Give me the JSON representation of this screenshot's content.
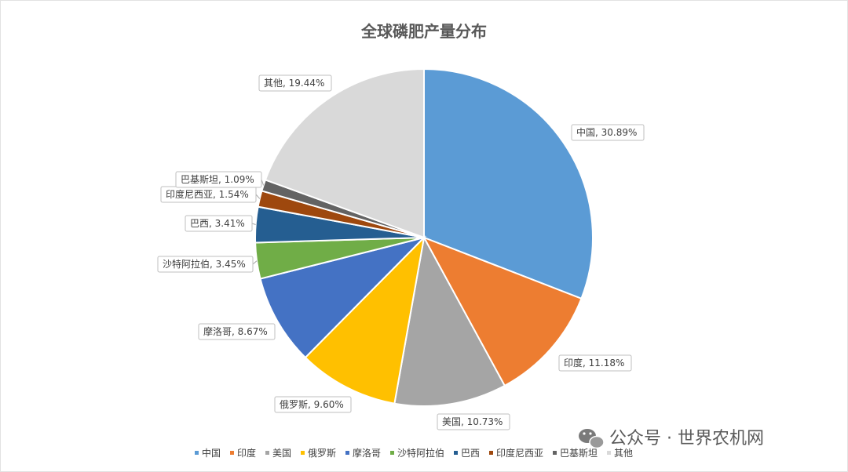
{
  "chart_data": {
    "type": "pie",
    "title": "全球磷肥产量分布",
    "categories": [
      "中国",
      "印度",
      "美国",
      "俄罗斯",
      "摩洛哥",
      "沙特阿拉伯",
      "巴西",
      "印度尼西亚",
      "巴基斯坦",
      "其他"
    ],
    "values": [
      30.89,
      11.18,
      10.73,
      9.6,
      8.67,
      3.45,
      3.41,
      1.54,
      1.09,
      19.44
    ],
    "data_labels": [
      "中国, 30.89%",
      "印度, 11.18%",
      "美国, 10.73%",
      "俄罗斯, 9.60%",
      "摩洛哥, 8.67%",
      "沙特阿拉伯, 3.45%",
      "巴西, 3.41%",
      "印度尼西亚, 1.54%",
      "巴基斯坦, 1.09%",
      "其他, 19.44%"
    ],
    "colors": [
      "#5b9bd5",
      "#ed7d31",
      "#a5a5a5",
      "#ffc000",
      "#4472c4",
      "#70ad47",
      "#255e91",
      "#9e480e",
      "#636363",
      "#d9d9d9"
    ],
    "legend_position": "bottom",
    "start_angle": "12 o'clock, clockwise"
  },
  "watermark": {
    "icon": "wechat-icon",
    "text": "公众号 · 世界农机网"
  }
}
